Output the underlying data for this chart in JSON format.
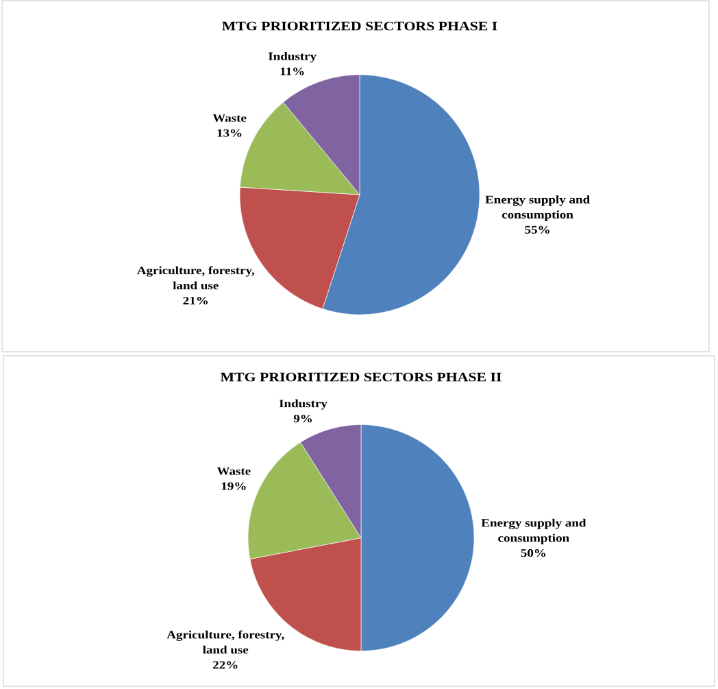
{
  "chart_data": [
    {
      "type": "pie",
      "title": "MTG PRIORITIZED SECTORS PHASE I",
      "categories": [
        "Energy supply and consumption",
        "Agriculture, forestry, land use",
        "Waste",
        "Industry"
      ],
      "values": [
        55,
        21,
        13,
        11
      ],
      "colors": [
        "#4f81bd",
        "#c0504d",
        "#9bbb59",
        "#8064a2"
      ],
      "value_labels": [
        "55%",
        "21%",
        "13%",
        "11%"
      ]
    },
    {
      "type": "pie",
      "title": "MTG PRIORITIZED SECTORS PHASE II",
      "categories": [
        "Energy supply and consumption",
        "Agriculture, forestry, land use",
        "Waste",
        "Industry"
      ],
      "values": [
        50,
        22,
        19,
        9
      ],
      "colors": [
        "#4f81bd",
        "#c0504d",
        "#9bbb59",
        "#8064a2"
      ],
      "value_labels": [
        "50%",
        "22%",
        "19%",
        "9%"
      ]
    }
  ]
}
